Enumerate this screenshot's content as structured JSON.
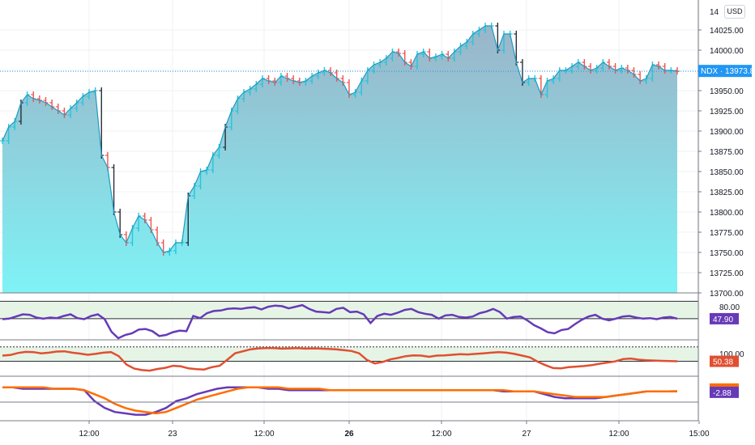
{
  "currency": "USD",
  "symbol": "NDX",
  "last_price": "13973.83",
  "last_value": 13973.83,
  "colors": {
    "area_top": "#9bb4c8",
    "area_bottom": "#7ef3f6",
    "line": "#1e9cc4",
    "bar_up": "#26c6da",
    "bar_down": "#ef5350",
    "bar_dark": "#2a2e39",
    "indicator_purple": "#673ab7",
    "indicator_orange": "#ff6d00",
    "indicator_red": "#e04f31",
    "band_fill": "#e6f4e6",
    "band_line": "#2a2e39",
    "price_tag": "#2196f3"
  },
  "price_axis": {
    "min": 13700,
    "max": 14050,
    "labels": [
      "14025.00",
      "14000.00",
      "13975.00",
      "13950.00",
      "13925.00",
      "13900.00",
      "13875.00",
      "13850.00",
      "13825.00",
      "13800.00",
      "13775.00",
      "13750.00",
      "13725.00",
      "13700.00"
    ],
    "values": [
      14025,
      14000,
      13975,
      13950,
      13925,
      13900,
      13875,
      13850,
      13825,
      13800,
      13775,
      13750,
      13725,
      13700
    ],
    "top_partial": "14"
  },
  "time_axis": [
    {
      "label": "12:00",
      "bold": false
    },
    {
      "label": "23",
      "bold": false
    },
    {
      "label": "12:00",
      "bold": false
    },
    {
      "label": "26",
      "bold": true
    },
    {
      "label": "12:00",
      "bold": false
    },
    {
      "label": "27",
      "bold": false
    },
    {
      "label": "12:00",
      "bold": false
    },
    {
      "label": "15:00",
      "bold": false
    }
  ],
  "chart_data": {
    "type": "area",
    "x_ticks": [
      "12:00",
      "23",
      "12:00",
      "26",
      "12:00",
      "27",
      "12:00",
      "15:00"
    ],
    "ylim": [
      13700,
      14050
    ],
    "y": [
      13888,
      13905,
      13912,
      13935,
      13945,
      13940,
      13938,
      13935,
      13930,
      13925,
      13920,
      13928,
      13935,
      13943,
      13948,
      13950,
      13870,
      13855,
      13800,
      13772,
      13762,
      13780,
      13795,
      13790,
      13778,
      13762,
      13750,
      13752,
      13762,
      13762,
      13820,
      13832,
      13850,
      13852,
      13870,
      13880,
      13905,
      13925,
      13940,
      13948,
      13952,
      13958,
      13965,
      13962,
      13960,
      13968,
      13965,
      13962,
      13960,
      13962,
      13968,
      13972,
      13975,
      13972,
      13965,
      13960,
      13945,
      13948,
      13962,
      13975,
      13982,
      13985,
      13990,
      13998,
      13996,
      13985,
      13980,
      13995,
      13998,
      13990,
      13992,
      13995,
      13990,
      13998,
      14005,
      14010,
      14020,
      14025,
      14030,
      14030,
      14000,
      14020,
      14020,
      13985,
      13960,
      13965,
      13965,
      13945,
      13962,
      13965,
      13975,
      13975,
      13980,
      13985,
      13980,
      13975,
      13978,
      13985,
      13980,
      13975,
      13978,
      13975,
      13970,
      13962,
      13965,
      13982,
      13980,
      13975,
      13975,
      13973.83
    ],
    "indicator1": {
      "name": "",
      "last": "47.90",
      "band": [
        80,
        47.9
      ],
      "values": [
        47,
        48,
        52,
        56,
        55,
        50,
        48,
        50,
        49,
        53,
        56,
        49,
        47,
        53,
        56,
        47,
        24,
        12,
        18,
        21,
        28,
        29,
        25,
        16,
        18,
        23,
        26,
        25,
        53,
        49,
        58,
        62,
        63,
        66,
        67,
        66,
        68,
        69,
        65,
        70,
        72,
        71,
        67,
        70,
        73,
        66,
        61,
        60,
        59,
        66,
        68,
        60,
        61,
        56,
        40,
        53,
        57,
        55,
        59,
        64,
        66,
        60,
        57,
        55,
        48,
        54,
        55,
        51,
        50,
        52,
        58,
        61,
        66,
        60,
        48,
        51,
        52,
        45,
        36,
        30,
        23,
        21,
        27,
        29,
        38,
        46,
        52,
        55,
        48,
        45,
        48,
        52,
        53,
        50,
        48,
        49,
        47,
        50,
        51,
        47.9
      ]
    },
    "indicator2": {
      "name": "",
      "last": "50.38",
      "band": [
        100,
        50.38
      ],
      "values": [
        70,
        72,
        79,
        83,
        82,
        78,
        80,
        84,
        85,
        80,
        77,
        73,
        76,
        80,
        82,
        68,
        39,
        25,
        20,
        18,
        24,
        28,
        35,
        33,
        26,
        23,
        22,
        30,
        35,
        56,
        78,
        85,
        92,
        95,
        96,
        96,
        94,
        95,
        96,
        94,
        95,
        94,
        93,
        92,
        89,
        86,
        78,
        55,
        43,
        48,
        57,
        62,
        68,
        71,
        70,
        66,
        70,
        71,
        73,
        75,
        74,
        76,
        78,
        80,
        82,
        80,
        76,
        70,
        64,
        49,
        37,
        27,
        26,
        30,
        32,
        34,
        37,
        42,
        46,
        50,
        58,
        60,
        56,
        54,
        53,
        52,
        51,
        50.38
      ]
    },
    "indicator3": {
      "name": "",
      "last_purple": "-2.88",
      "last_orange": "-2.86",
      "purple": [
        0,
        0,
        -1,
        -1,
        -1,
        -1,
        -1,
        -1,
        -2,
        -10,
        -15,
        -18,
        -19,
        -20,
        -20,
        -18,
        -15,
        -10,
        -8,
        -5,
        -3,
        -1,
        0,
        0,
        0,
        0,
        -1,
        -1,
        -2,
        -2,
        -2,
        -2,
        -2,
        -2,
        -2,
        -2,
        -2,
        -2,
        -2,
        -2,
        -2,
        -2,
        -2,
        -2,
        -2,
        -2,
        -2,
        -2,
        -2,
        -3,
        -3,
        -3,
        -3,
        -5,
        -7,
        -8,
        -8,
        -8,
        -8,
        -7,
        -6,
        -5,
        -4,
        -3,
        -3,
        -3,
        -2.88
      ],
      "orange": [
        0,
        0,
        0,
        0,
        0,
        -1,
        -1,
        -1,
        -2,
        -5,
        -8,
        -12,
        -15,
        -17,
        -18,
        -19,
        -18,
        -15,
        -12,
        -9,
        -7,
        -5,
        -3,
        -1,
        0,
        0,
        0,
        0,
        -1,
        -1,
        -1,
        -1,
        -2,
        -2,
        -2,
        -2,
        -2,
        -2,
        -2,
        -2,
        -2,
        -2,
        -2,
        -2,
        -2,
        -2,
        -2,
        -2,
        -2,
        -2,
        -3,
        -3,
        -3,
        -4,
        -5,
        -6,
        -7,
        -7,
        -7,
        -7,
        -6,
        -5,
        -4,
        -3,
        -3,
        -3,
        -2.86
      ]
    }
  }
}
